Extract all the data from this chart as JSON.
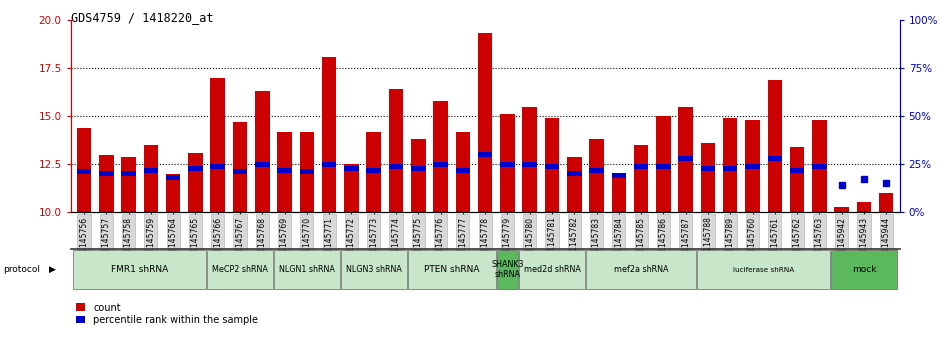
{
  "title": "GDS4759 / 1418220_at",
  "samples": [
    "GSM1145756",
    "GSM1145757",
    "GSM1145758",
    "GSM1145759",
    "GSM1145764",
    "GSM1145765",
    "GSM1145766",
    "GSM1145767",
    "GSM1145768",
    "GSM1145769",
    "GSM1145770",
    "GSM1145771",
    "GSM1145772",
    "GSM1145773",
    "GSM1145774",
    "GSM1145775",
    "GSM1145776",
    "GSM1145777",
    "GSM1145778",
    "GSM1145779",
    "GSM1145780",
    "GSM1145781",
    "GSM1145782",
    "GSM1145783",
    "GSM1145784",
    "GSM1145785",
    "GSM1145786",
    "GSM1145787",
    "GSM1145788",
    "GSM1145789",
    "GSM1145760",
    "GSM1145761",
    "GSM1145762",
    "GSM1145763",
    "GSM1145942",
    "GSM1145943",
    "GSM1145944"
  ],
  "counts": [
    14.4,
    13.0,
    12.9,
    13.5,
    12.0,
    13.1,
    17.0,
    14.7,
    16.3,
    14.2,
    14.2,
    18.1,
    12.5,
    14.2,
    16.4,
    13.8,
    15.8,
    14.2,
    19.3,
    15.1,
    15.5,
    14.9,
    12.9,
    13.8,
    11.8,
    13.5,
    15.0,
    15.5,
    13.6,
    14.9,
    14.8,
    16.9,
    13.4,
    14.8,
    10.3,
    10.55,
    11.0
  ],
  "percentile_ranks": [
    12.1,
    12.0,
    12.0,
    12.2,
    11.8,
    12.3,
    12.4,
    12.1,
    12.5,
    12.2,
    12.1,
    12.5,
    12.3,
    12.2,
    12.4,
    12.3,
    12.5,
    12.2,
    13.0,
    12.5,
    12.5,
    12.4,
    12.0,
    12.2,
    11.9,
    12.4,
    12.4,
    12.8,
    12.3,
    12.3,
    12.4,
    12.8,
    12.2,
    12.4,
    0,
    0,
    0
  ],
  "percentile_dots": [
    null,
    null,
    null,
    null,
    null,
    null,
    null,
    null,
    null,
    null,
    null,
    null,
    null,
    null,
    null,
    null,
    null,
    null,
    null,
    null,
    null,
    null,
    null,
    null,
    null,
    null,
    null,
    null,
    null,
    null,
    null,
    null,
    null,
    null,
    11.4,
    11.75,
    11.55
  ],
  "ylim_left": [
    10,
    20
  ],
  "ylim_right": [
    0,
    100
  ],
  "yticks_left": [
    10,
    12.5,
    15,
    17.5,
    20
  ],
  "yticks_right": [
    0,
    25,
    50,
    75,
    100
  ],
  "bar_color": "#cc0000",
  "percentile_color": "#0000cc",
  "dotted_lines": [
    12.5,
    15.0,
    17.5
  ],
  "protocol_groups": [
    {
      "label": "FMR1 shRNA",
      "start": 0,
      "end": 5,
      "color": "#c8e6c9",
      "dark": false
    },
    {
      "label": "MeCP2 shRNA",
      "start": 6,
      "end": 8,
      "color": "#c8e6c9",
      "dark": false
    },
    {
      "label": "NLGN1 shRNA",
      "start": 9,
      "end": 11,
      "color": "#c8e6c9",
      "dark": false
    },
    {
      "label": "NLGN3 shRNA",
      "start": 12,
      "end": 14,
      "color": "#c8e6c9",
      "dark": false
    },
    {
      "label": "PTEN shRNA",
      "start": 15,
      "end": 18,
      "color": "#c8e6c9",
      "dark": false
    },
    {
      "label": "SHANK3\nshRNA",
      "start": 19,
      "end": 19,
      "color": "#5cb85c",
      "dark": true
    },
    {
      "label": "med2d shRNA",
      "start": 20,
      "end": 22,
      "color": "#c8e6c9",
      "dark": false
    },
    {
      "label": "mef2a shRNA",
      "start": 23,
      "end": 27,
      "color": "#c8e6c9",
      "dark": false
    },
    {
      "label": "luciferase shRNA",
      "start": 28,
      "end": 33,
      "color": "#c8e6c9",
      "dark": false
    },
    {
      "label": "mock",
      "start": 34,
      "end": 36,
      "color": "#5cb85c",
      "dark": true
    }
  ],
  "legend_count_label": "count",
  "legend_percentile_label": "percentile rank within the sample"
}
